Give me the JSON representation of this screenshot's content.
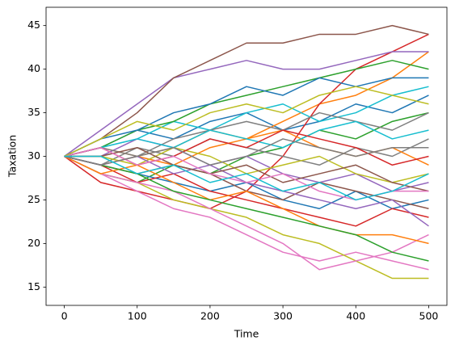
{
  "chart_data": {
    "type": "line",
    "x_label": "Time",
    "y_label": "Taxation",
    "x": [
      0,
      50,
      100,
      150,
      200,
      250,
      300,
      350,
      400,
      450,
      500
    ],
    "xlim": [
      -25,
      525
    ],
    "xticks": [
      0,
      100,
      200,
      300,
      400,
      500
    ],
    "ylim": [
      12.9,
      47.1
    ],
    "yticks": [
      15,
      20,
      25,
      30,
      35,
      40,
      45
    ],
    "grid": false,
    "series": [
      {
        "color": "#1f77b4",
        "values": [
          30,
          31,
          33,
          32,
          34,
          35,
          33,
          34,
          36,
          35,
          37
        ]
      },
      {
        "color": "#ff7f0e",
        "values": [
          30,
          29,
          30,
          31,
          33,
          32,
          34,
          36,
          37,
          39,
          42
        ]
      },
      {
        "color": "#2ca02c",
        "values": [
          30,
          28,
          27,
          29,
          28,
          30,
          31,
          33,
          32,
          34,
          35
        ]
      },
      {
        "color": "#d62728",
        "values": [
          30,
          27,
          26,
          25,
          24,
          26,
          30,
          36,
          40,
          42,
          44
        ]
      },
      {
        "color": "#9467bd",
        "values": [
          30,
          33,
          36,
          39,
          40,
          41,
          40,
          40,
          41,
          42,
          42
        ]
      },
      {
        "color": "#8c564b",
        "values": [
          30,
          32,
          35,
          39,
          41,
          43,
          43,
          44,
          44,
          45,
          44
        ]
      },
      {
        "color": "#e377c2",
        "values": [
          30,
          28,
          26,
          24,
          23,
          21,
          19,
          18,
          19,
          18,
          17
        ]
      },
      {
        "color": "#7f7f7f",
        "values": [
          30,
          29,
          31,
          30,
          32,
          31,
          30,
          29,
          31,
          30,
          32
        ]
      },
      {
        "color": "#bcbd22",
        "values": [
          30,
          28,
          27,
          25,
          24,
          23,
          21,
          20,
          18,
          16,
          16
        ]
      },
      {
        "color": "#17becf",
        "values": [
          30,
          31,
          32,
          34,
          33,
          35,
          36,
          34,
          35,
          37,
          38
        ]
      },
      {
        "color": "#1f77b4",
        "values": [
          30,
          29,
          28,
          27,
          26,
          27,
          25,
          24,
          26,
          24,
          25
        ]
      },
      {
        "color": "#ff7f0e",
        "values": [
          30,
          31,
          30,
          29,
          31,
          32,
          33,
          31,
          30,
          31,
          29
        ]
      },
      {
        "color": "#2ca02c",
        "values": [
          30,
          31,
          33,
          34,
          36,
          37,
          38,
          39,
          40,
          41,
          40
        ]
      },
      {
        "color": "#d62728",
        "values": [
          30,
          29,
          27,
          28,
          26,
          25,
          24,
          23,
          22,
          24,
          23
        ]
      },
      {
        "color": "#9467bd",
        "values": [
          30,
          30,
          32,
          31,
          29,
          30,
          28,
          27,
          28,
          26,
          27
        ]
      },
      {
        "color": "#8c564b",
        "values": [
          30,
          29,
          28,
          29,
          28,
          26,
          25,
          27,
          26,
          25,
          24
        ]
      },
      {
        "color": "#e377c2",
        "values": [
          30,
          28,
          27,
          26,
          24,
          22,
          20,
          17,
          18,
          19,
          21
        ]
      },
      {
        "color": "#7f7f7f",
        "values": [
          30,
          31,
          30,
          32,
          33,
          34,
          33,
          35,
          34,
          33,
          35
        ]
      },
      {
        "color": "#bcbd22",
        "values": [
          30,
          30,
          29,
          31,
          30,
          28,
          29,
          30,
          28,
          27,
          28
        ]
      },
      {
        "color": "#17becf",
        "values": [
          30,
          31,
          32,
          31,
          33,
          32,
          31,
          33,
          34,
          32,
          33
        ]
      },
      {
        "color": "#1f77b4",
        "values": [
          30,
          32,
          33,
          35,
          36,
          38,
          37,
          39,
          38,
          39,
          39
        ]
      },
      {
        "color": "#ff7f0e",
        "values": [
          30,
          28,
          29,
          27,
          25,
          26,
          24,
          22,
          21,
          21,
          20
        ]
      },
      {
        "color": "#2ca02c",
        "values": [
          30,
          29,
          28,
          26,
          25,
          24,
          23,
          22,
          21,
          19,
          18
        ]
      },
      {
        "color": "#d62728",
        "values": [
          30,
          31,
          29,
          30,
          32,
          31,
          33,
          32,
          31,
          29,
          30
        ]
      },
      {
        "color": "#9467bd",
        "values": [
          30,
          29,
          30,
          28,
          29,
          27,
          26,
          25,
          24,
          25,
          22
        ]
      },
      {
        "color": "#8c564b",
        "values": [
          30,
          30,
          31,
          29,
          28,
          29,
          27,
          28,
          29,
          27,
          26
        ]
      },
      {
        "color": "#e377c2",
        "values": [
          30,
          31,
          29,
          30,
          28,
          27,
          28,
          26,
          25,
          26,
          26
        ]
      },
      {
        "color": "#7f7f7f",
        "values": [
          30,
          29,
          30,
          31,
          29,
          30,
          32,
          31,
          30,
          31,
          31
        ]
      },
      {
        "color": "#bcbd22",
        "values": [
          30,
          32,
          34,
          33,
          35,
          36,
          35,
          37,
          38,
          37,
          36
        ]
      },
      {
        "color": "#17becf",
        "values": [
          30,
          30,
          28,
          29,
          27,
          28,
          26,
          27,
          25,
          26,
          28
        ]
      }
    ]
  }
}
